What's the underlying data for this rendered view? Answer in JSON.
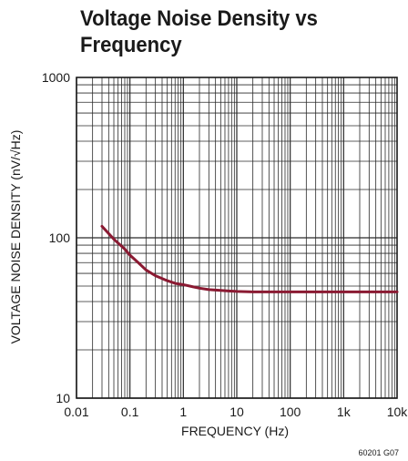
{
  "chart_data": {
    "type": "line",
    "title": "Voltage Noise Density  vs Frequency",
    "xlabel": "FREQUENCY (Hz)",
    "ylabel": "VOLTAGE NOISE DENSITY (nV/√Hz)",
    "xscale": "log",
    "yscale": "log",
    "xlim": [
      0.01,
      10000
    ],
    "ylim": [
      10,
      1000
    ],
    "x_tick_labels": [
      "0.01",
      "0.1",
      "1",
      "10",
      "100",
      "1k",
      "10k"
    ],
    "y_tick_labels": [
      "10",
      "100",
      "1000"
    ],
    "grid": true,
    "series": [
      {
        "x": [
          0.03,
          0.05,
          0.08,
          0.1,
          0.15,
          0.2,
          0.3,
          0.5,
          0.7,
          1,
          1.5,
          2,
          3,
          5,
          7,
          10,
          20,
          50,
          100,
          300,
          1000,
          3000,
          10000
        ],
        "values": [
          118,
          98,
          85,
          78,
          69,
          63,
          58,
          54,
          52,
          51,
          49.5,
          48.5,
          47.5,
          47,
          46.6,
          46.3,
          46,
          46,
          46,
          46,
          46,
          46,
          46
        ],
        "color": "#8a1a32"
      }
    ],
    "figure_code": "60201 G07"
  }
}
